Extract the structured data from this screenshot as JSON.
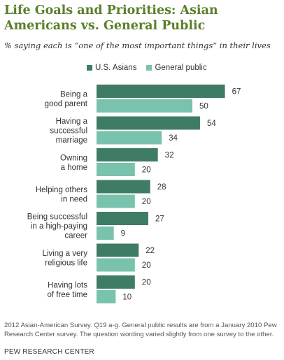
{
  "colors": {
    "title": "#5a7f2a",
    "us_asians": "#3e7d63",
    "general_public": "#79c2ad"
  },
  "chart_data": {
    "type": "bar",
    "orientation": "horizontal",
    "title": "Life Goals and Priorities: Asian Americans vs. General Public",
    "subtitle": "% saying each is “one of the most important things” in their lives",
    "categories": [
      [
        "Being a",
        "good parent"
      ],
      [
        "Having a",
        "successful",
        "marriage"
      ],
      [
        "Owning",
        "a home"
      ],
      [
        "Helping others",
        "in need"
      ],
      [
        "Being successful",
        "in a high-paying",
        "career"
      ],
      [
        "Living a very",
        "religious life"
      ],
      [
        "Having lots",
        "of free time"
      ]
    ],
    "series": [
      {
        "name": "U.S. Asians",
        "values": [
          67,
          54,
          32,
          28,
          27,
          22,
          20
        ]
      },
      {
        "name": "General public",
        "values": [
          50,
          34,
          20,
          20,
          9,
          20,
          10
        ]
      }
    ],
    "xlim": [
      0,
      100
    ],
    "legend_position": "top",
    "grid": false,
    "data_labels": true
  },
  "note": "2012 Asian-American Survey. Q19 a-g. General public results are from a January 2010 Pew Research Center survey. The question wording varied slightly from one survey to the other.",
  "source": "PEW RESEARCH CENTER"
}
